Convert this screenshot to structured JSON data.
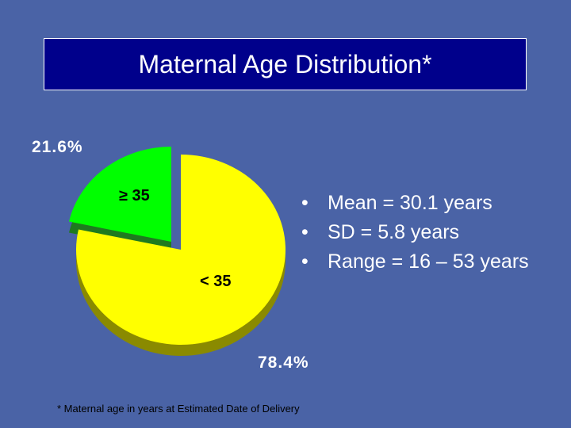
{
  "slide": {
    "title": "Maternal Age Distribution*",
    "footnote": "* Maternal age in years at Estimated Date of Delivery"
  },
  "stats": [
    "Mean = 30.1 years",
    "SD = 5.8 years",
    "Range = 16 – 53 years"
  ],
  "bullet_char": "•",
  "chart_data": {
    "type": "pie",
    "categories": [
      "≥ 35",
      "< 35"
    ],
    "values": [
      21.6,
      78.4
    ],
    "value_labels": [
      "21.6%",
      "78.4%"
    ],
    "colors": [
      "#00ff00",
      "#ffff00"
    ],
    "shadow_colors": [
      "#1f7a1f",
      "#8a8a00"
    ],
    "exploded": "≥ 35",
    "legend": "none"
  }
}
